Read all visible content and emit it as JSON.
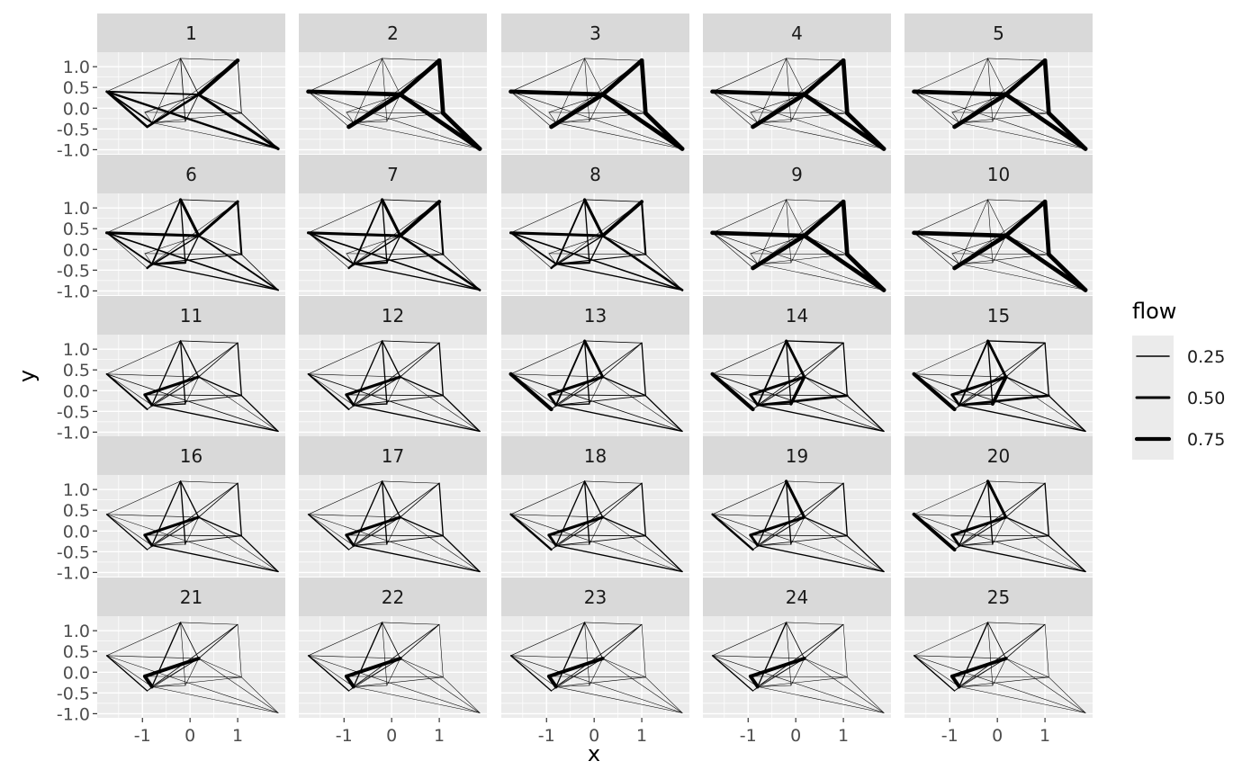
{
  "chart_data": {
    "type": "network-facet",
    "panels": [
      "1",
      "2",
      "3",
      "4",
      "5",
      "6",
      "7",
      "8",
      "9",
      "10",
      "11",
      "12",
      "13",
      "14",
      "15",
      "16",
      "17",
      "18",
      "19",
      "20",
      "21",
      "22",
      "23",
      "24",
      "25"
    ],
    "nodes": [
      {
        "id": "A",
        "x": -1.75,
        "y": 0.4
      },
      {
        "id": "B",
        "x": -0.9,
        "y": -0.45
      },
      {
        "id": "C",
        "x": -0.95,
        "y": -0.1
      },
      {
        "id": "D",
        "x": -0.8,
        "y": -0.35
      },
      {
        "id": "E",
        "x": -0.1,
        "y": -0.32
      },
      {
        "id": "F",
        "x": -0.2,
        "y": 1.2
      },
      {
        "id": "G",
        "x": 0.18,
        "y": 0.33
      },
      {
        "id": "H",
        "x": 1.0,
        "y": 1.15
      },
      {
        "id": "I",
        "x": 1.08,
        "y": -0.12
      },
      {
        "id": "J",
        "x": 1.85,
        "y": -0.98
      }
    ],
    "edges": [
      [
        "A",
        "G"
      ],
      [
        "A",
        "B"
      ],
      [
        "A",
        "D"
      ],
      [
        "A",
        "F"
      ],
      [
        "A",
        "J"
      ],
      [
        "B",
        "G"
      ],
      [
        "B",
        "D"
      ],
      [
        "C",
        "D"
      ],
      [
        "C",
        "I"
      ],
      [
        "C",
        "G"
      ],
      [
        "D",
        "E"
      ],
      [
        "D",
        "F"
      ],
      [
        "D",
        "G"
      ],
      [
        "D",
        "I"
      ],
      [
        "D",
        "H"
      ],
      [
        "D",
        "J"
      ],
      [
        "E",
        "G"
      ],
      [
        "E",
        "F"
      ],
      [
        "F",
        "G"
      ],
      [
        "F",
        "H"
      ],
      [
        "G",
        "H"
      ],
      [
        "G",
        "I"
      ],
      [
        "G",
        "J"
      ],
      [
        "H",
        "I"
      ],
      [
        "I",
        "J"
      ]
    ],
    "flow": [
      [
        0.3,
        0.45,
        0.3,
        0.05,
        0.4,
        0.45,
        0.05,
        0.05,
        0.05,
        0.1,
        0.05,
        0.05,
        0.05,
        0.05,
        0.05,
        0.05,
        0.1,
        0.1,
        0.1,
        0.05,
        0.8,
        0.1,
        0.55,
        0.1,
        0.1
      ],
      [
        0.85,
        0.05,
        0.05,
        0.05,
        0.05,
        0.85,
        0.05,
        0.05,
        0.05,
        0.05,
        0.05,
        0.05,
        0.05,
        0.05,
        0.05,
        0.05,
        0.05,
        0.05,
        0.05,
        0.05,
        0.85,
        0.05,
        0.85,
        0.85,
        0.85
      ],
      [
        0.85,
        0.05,
        0.05,
        0.05,
        0.05,
        0.85,
        0.05,
        0.05,
        0.05,
        0.05,
        0.05,
        0.05,
        0.05,
        0.05,
        0.05,
        0.05,
        0.05,
        0.05,
        0.05,
        0.05,
        0.85,
        0.05,
        0.85,
        0.85,
        0.85
      ],
      [
        0.85,
        0.05,
        0.05,
        0.05,
        0.05,
        0.85,
        0.05,
        0.05,
        0.05,
        0.05,
        0.05,
        0.05,
        0.05,
        0.05,
        0.05,
        0.05,
        0.05,
        0.05,
        0.05,
        0.05,
        0.85,
        0.05,
        0.85,
        0.85,
        0.85
      ],
      [
        0.85,
        0.05,
        0.05,
        0.05,
        0.05,
        0.85,
        0.05,
        0.05,
        0.05,
        0.05,
        0.05,
        0.05,
        0.05,
        0.05,
        0.05,
        0.05,
        0.05,
        0.05,
        0.05,
        0.05,
        0.85,
        0.05,
        0.85,
        0.85,
        0.85
      ],
      [
        0.55,
        0.05,
        0.3,
        0.05,
        0.25,
        0.2,
        0.4,
        0.05,
        0.05,
        0.05,
        0.4,
        0.3,
        0.05,
        0.15,
        0.05,
        0.2,
        0.2,
        0.2,
        0.55,
        0.1,
        0.55,
        0.1,
        0.3,
        0.35,
        0.1
      ],
      [
        0.55,
        0.05,
        0.3,
        0.05,
        0.25,
        0.2,
        0.4,
        0.05,
        0.05,
        0.05,
        0.4,
        0.3,
        0.05,
        0.15,
        0.05,
        0.2,
        0.2,
        0.2,
        0.55,
        0.1,
        0.75,
        0.1,
        0.45,
        0.35,
        0.1
      ],
      [
        0.55,
        0.05,
        0.3,
        0.05,
        0.25,
        0.2,
        0.4,
        0.05,
        0.05,
        0.05,
        0.4,
        0.3,
        0.05,
        0.15,
        0.05,
        0.2,
        0.2,
        0.2,
        0.55,
        0.1,
        0.7,
        0.1,
        0.45,
        0.35,
        0.1
      ],
      [
        0.85,
        0.05,
        0.1,
        0.05,
        0.05,
        0.85,
        0.05,
        0.05,
        0.05,
        0.05,
        0.05,
        0.05,
        0.05,
        0.05,
        0.05,
        0.05,
        0.05,
        0.05,
        0.05,
        0.05,
        0.85,
        0.05,
        0.85,
        0.85,
        0.85
      ],
      [
        0.85,
        0.05,
        0.1,
        0.05,
        0.05,
        0.85,
        0.05,
        0.05,
        0.05,
        0.05,
        0.05,
        0.05,
        0.05,
        0.05,
        0.05,
        0.05,
        0.05,
        0.05,
        0.05,
        0.05,
        0.85,
        0.05,
        0.85,
        0.85,
        0.85
      ],
      [
        0.05,
        0.3,
        0.05,
        0.05,
        0.1,
        0.05,
        0.05,
        0.5,
        0.1,
        0.55,
        0.2,
        0.2,
        0.05,
        0.1,
        0.1,
        0.2,
        0.05,
        0.2,
        0.2,
        0.1,
        0.1,
        0.2,
        0.05,
        0.2,
        0.2
      ],
      [
        0.05,
        0.3,
        0.05,
        0.05,
        0.1,
        0.05,
        0.05,
        0.5,
        0.1,
        0.55,
        0.2,
        0.2,
        0.05,
        0.1,
        0.1,
        0.2,
        0.05,
        0.2,
        0.2,
        0.1,
        0.1,
        0.2,
        0.05,
        0.2,
        0.2
      ],
      [
        0.05,
        0.75,
        0.05,
        0.05,
        0.1,
        0.05,
        0.05,
        0.5,
        0.1,
        0.55,
        0.2,
        0.3,
        0.05,
        0.1,
        0.1,
        0.2,
        0.05,
        0.2,
        0.5,
        0.1,
        0.1,
        0.2,
        0.05,
        0.2,
        0.2
      ],
      [
        0.05,
        0.75,
        0.05,
        0.05,
        0.1,
        0.05,
        0.05,
        0.5,
        0.1,
        0.55,
        0.2,
        0.3,
        0.05,
        0.45,
        0.1,
        0.2,
        0.6,
        0.2,
        0.5,
        0.2,
        0.1,
        0.2,
        0.05,
        0.2,
        0.2
      ],
      [
        0.05,
        0.75,
        0.05,
        0.05,
        0.1,
        0.05,
        0.05,
        0.5,
        0.1,
        0.55,
        0.2,
        0.3,
        0.05,
        0.45,
        0.1,
        0.2,
        0.7,
        0.2,
        0.5,
        0.2,
        0.1,
        0.2,
        0.05,
        0.2,
        0.2
      ],
      [
        0.05,
        0.2,
        0.05,
        0.05,
        0.05,
        0.05,
        0.05,
        0.5,
        0.1,
        0.55,
        0.05,
        0.2,
        0.05,
        0.1,
        0.1,
        0.2,
        0.05,
        0.2,
        0.2,
        0.05,
        0.1,
        0.2,
        0.05,
        0.2,
        0.2
      ],
      [
        0.05,
        0.2,
        0.05,
        0.05,
        0.05,
        0.05,
        0.05,
        0.5,
        0.1,
        0.55,
        0.05,
        0.2,
        0.05,
        0.1,
        0.1,
        0.2,
        0.05,
        0.2,
        0.2,
        0.05,
        0.1,
        0.2,
        0.05,
        0.2,
        0.2
      ],
      [
        0.05,
        0.4,
        0.05,
        0.05,
        0.05,
        0.05,
        0.05,
        0.5,
        0.1,
        0.55,
        0.05,
        0.2,
        0.05,
        0.1,
        0.1,
        0.2,
        0.05,
        0.2,
        0.2,
        0.05,
        0.1,
        0.2,
        0.05,
        0.2,
        0.2
      ],
      [
        0.05,
        0.4,
        0.05,
        0.05,
        0.05,
        0.05,
        0.05,
        0.5,
        0.1,
        0.55,
        0.05,
        0.2,
        0.05,
        0.1,
        0.1,
        0.2,
        0.05,
        0.2,
        0.55,
        0.05,
        0.1,
        0.2,
        0.05,
        0.2,
        0.2
      ],
      [
        0.05,
        0.7,
        0.05,
        0.05,
        0.05,
        0.05,
        0.05,
        0.5,
        0.1,
        0.55,
        0.05,
        0.2,
        0.05,
        0.1,
        0.1,
        0.2,
        0.05,
        0.2,
        0.55,
        0.05,
        0.1,
        0.2,
        0.05,
        0.2,
        0.2
      ],
      [
        0.05,
        0.2,
        0.05,
        0.05,
        0.05,
        0.05,
        0.05,
        0.7,
        0.05,
        0.7,
        0.05,
        0.2,
        0.05,
        0.05,
        0.1,
        0.05,
        0.05,
        0.05,
        0.1,
        0.05,
        0.1,
        0.05,
        0.05,
        0.05,
        0.05
      ],
      [
        0.05,
        0.2,
        0.05,
        0.05,
        0.05,
        0.05,
        0.05,
        0.7,
        0.05,
        0.7,
        0.05,
        0.2,
        0.05,
        0.05,
        0.1,
        0.05,
        0.05,
        0.05,
        0.1,
        0.05,
        0.1,
        0.05,
        0.05,
        0.05,
        0.05
      ],
      [
        0.05,
        0.2,
        0.05,
        0.05,
        0.05,
        0.05,
        0.05,
        0.7,
        0.05,
        0.7,
        0.05,
        0.2,
        0.05,
        0.05,
        0.1,
        0.05,
        0.05,
        0.05,
        0.1,
        0.05,
        0.1,
        0.05,
        0.05,
        0.05,
        0.05
      ],
      [
        0.05,
        0.2,
        0.05,
        0.05,
        0.05,
        0.05,
        0.05,
        0.7,
        0.05,
        0.7,
        0.05,
        0.2,
        0.05,
        0.05,
        0.1,
        0.05,
        0.05,
        0.05,
        0.1,
        0.05,
        0.1,
        0.05,
        0.05,
        0.05,
        0.05
      ],
      [
        0.05,
        0.2,
        0.05,
        0.05,
        0.05,
        0.05,
        0.05,
        0.7,
        0.05,
        0.7,
        0.05,
        0.2,
        0.05,
        0.05,
        0.1,
        0.05,
        0.05,
        0.05,
        0.1,
        0.05,
        0.1,
        0.05,
        0.05,
        0.05,
        0.05
      ]
    ],
    "xlabel": "x",
    "ylabel": "y",
    "xlim": [
      -1.95,
      2.0
    ],
    "ylim": [
      -1.1,
      1.35
    ],
    "xticks": [
      -1,
      0,
      1
    ],
    "xtick_labels": [
      "-1",
      "0",
      "1"
    ],
    "yticks": [
      1.0,
      0.5,
      0.0,
      -0.5,
      -1.0
    ],
    "ytick_labels": [
      "1.0",
      "0.5",
      "0.0",
      "-0.5",
      "-1.0"
    ],
    "grid": true,
    "legend": {
      "title": "flow",
      "position": "right",
      "entries": [
        {
          "label": "0.25",
          "value": 0.25
        },
        {
          "label": "0.50",
          "value": 0.5
        },
        {
          "label": "0.75",
          "value": 0.75
        }
      ]
    },
    "colors": {
      "panel_background": "#ebebeb",
      "strip_background": "#d9d9d9",
      "gridline": "#ffffff",
      "edge": "#000000"
    }
  }
}
